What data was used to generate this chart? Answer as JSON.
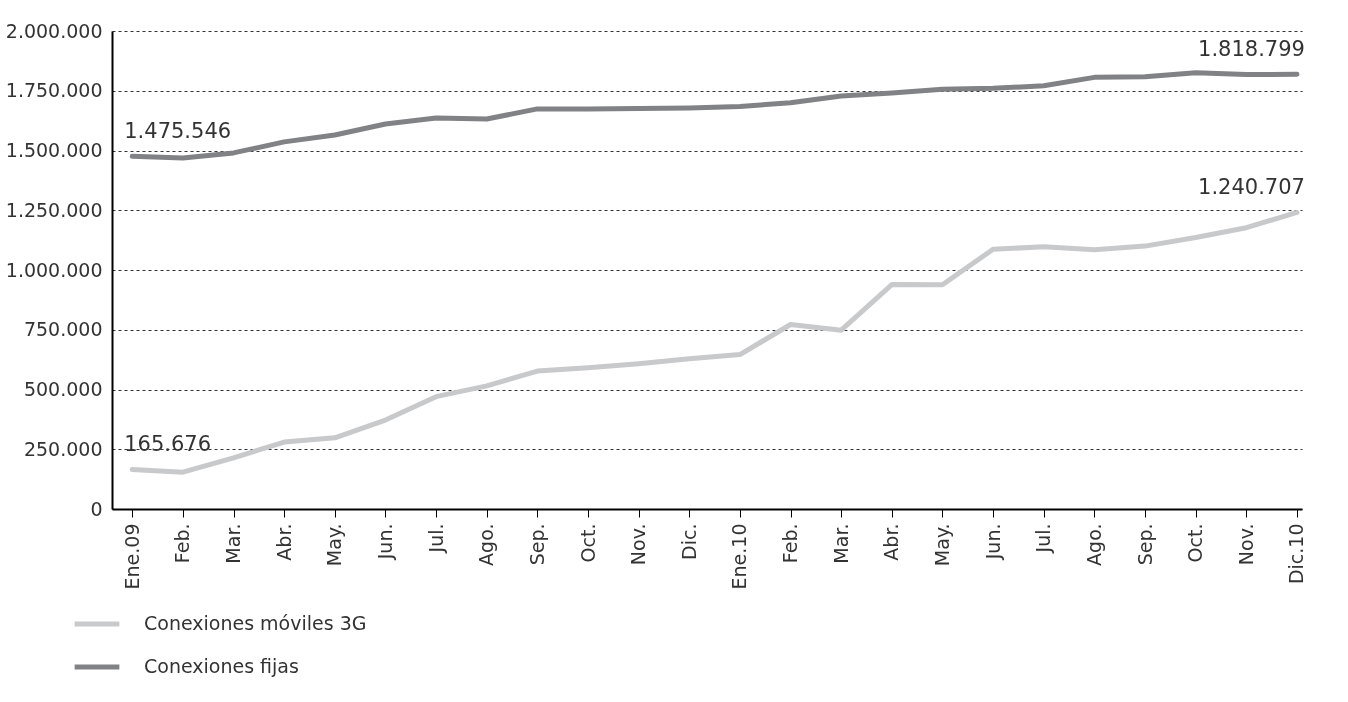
{
  "chart_data": {
    "type": "line",
    "categories": [
      "Ene.09",
      "Feb.",
      "Mar.",
      "Abr.",
      "May.",
      "Jun.",
      "Jul.",
      "Ago.",
      "Sep.",
      "Oct.",
      "Nov.",
      "Dic.",
      "Ene.10",
      "Feb.",
      "Mar.",
      "Abr.",
      "May.",
      "Jun.",
      "Jul.",
      "Ago.",
      "Sep.",
      "Oct.",
      "Nov.",
      "Dic.10"
    ],
    "series": [
      {
        "name": "Conexiones móviles 3G",
        "color": "#c8c9cb",
        "values": [
          165676,
          154000,
          214000,
          280000,
          298000,
          372000,
          470000,
          515000,
          577000,
          591000,
          608000,
          629000,
          646000,
          772000,
          748000,
          939000,
          938000,
          1087000,
          1097000,
          1085000,
          1100000,
          1136000,
          1177000,
          1240707
        ],
        "value_labels": [
          "165.676",
          null,
          null,
          null,
          null,
          null,
          null,
          null,
          null,
          null,
          null,
          null,
          null,
          null,
          null,
          null,
          null,
          null,
          null,
          null,
          null,
          null,
          null,
          "1.240.707"
        ]
      },
      {
        "name": "Conexiones fijas",
        "color": "#808285",
        "values": [
          1475546,
          1469000,
          1490000,
          1536000,
          1565000,
          1611000,
          1636000,
          1632000,
          1674000,
          1674000,
          1676000,
          1678000,
          1684000,
          1700000,
          1728000,
          1741000,
          1756000,
          1760000,
          1771000,
          1806000,
          1809000,
          1825000,
          1818000,
          1818799
        ],
        "value_labels": [
          "1.475.546",
          null,
          null,
          null,
          null,
          null,
          null,
          null,
          null,
          null,
          null,
          null,
          null,
          null,
          null,
          null,
          null,
          null,
          null,
          null,
          null,
          null,
          null,
          "1.818.799"
        ]
      }
    ],
    "ylim": [
      0,
      2000000
    ],
    "yticks": [
      0,
      {
        "value": 250000,
        "label": "250.000"
      },
      {
        "value": 500000,
        "label": "500.000"
      },
      {
        "value": 750000,
        "label": "750.000"
      },
      {
        "value": 1000000,
        "label": "1.000.000"
      },
      {
        "value": 1250000,
        "label": "1.250.000"
      },
      {
        "value": 1500000,
        "label": "1.500.000"
      },
      {
        "value": 1750000,
        "label": "1.750.000"
      },
      {
        "value": 2000000,
        "label": "2.000.000"
      }
    ],
    "grid": "y",
    "legend": "bottom left",
    "line_style": "solid"
  }
}
